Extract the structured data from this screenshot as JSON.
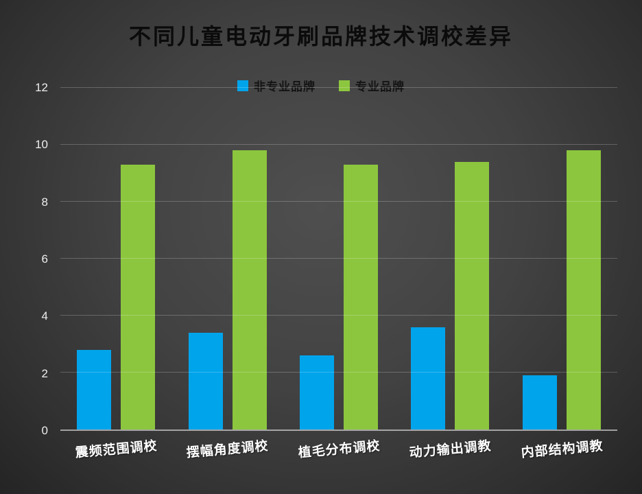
{
  "title": "不同儿童电动牙刷品牌技术调校差异",
  "legend": {
    "items": [
      {
        "label": "非专业品牌",
        "color": "#00A4EB"
      },
      {
        "label": "专业品牌",
        "color": "#8CC63E"
      }
    ]
  },
  "colors": {
    "background_center": "#4f4f4f",
    "background_edge": "#242424",
    "title_text": "#0b0b0b",
    "axis_text": "#ededed",
    "category_text": "#ffffff",
    "gridline": "rgba(255,255,255,0.22)",
    "baseline": "rgba(255,255,255,0.55)"
  },
  "chart_data": {
    "type": "bar",
    "title": "不同儿童电动牙刷品牌技术调校差异",
    "categories": [
      "震频范围调校",
      "摆幅角度调校",
      "植毛分布调校",
      "动力输出调教",
      "内部结构调教"
    ],
    "series": [
      {
        "name": "非专业品牌",
        "color": "#00A4EB",
        "values": [
          2.8,
          3.4,
          2.6,
          3.6,
          1.9
        ]
      },
      {
        "name": "专业品牌",
        "color": "#8CC63E",
        "values": [
          9.3,
          9.8,
          9.3,
          9.4,
          9.8
        ]
      }
    ],
    "xlabel": "",
    "ylabel": "",
    "ylim": [
      0,
      12
    ],
    "ytick_step": 2,
    "grid": true,
    "legend_position": "top"
  }
}
